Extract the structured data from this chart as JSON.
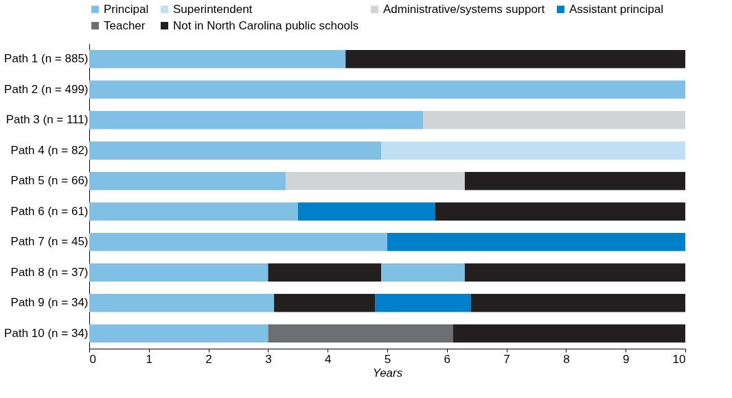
{
  "chart_data": {
    "type": "bar",
    "orientation": "horizontal",
    "stacked": true,
    "xlabel": "Years",
    "legend": "top right",
    "grid": false,
    "xlim": [
      0,
      10
    ],
    "xticks": [
      0,
      1,
      2,
      3,
      4,
      5,
      6,
      7,
      8,
      9,
      10
    ],
    "categories": [
      "Path 1 (n = 885)",
      "Path 2 (n = 499)",
      "Path 3 (n = 111)",
      "Path 4 (n = 82)",
      "Path 5 (n = 66)",
      "Path 6 (n = 61)",
      "Path 7 (n = 45)",
      "Path 8 (n = 37)",
      "Path 9 (n = 34)",
      "Path 10 (n = 34)"
    ],
    "series": [
      {
        "name": "Principal",
        "color": "#80c0e4",
        "values": [
          4.3,
          10,
          5.6,
          4.9,
          3.3,
          3.5,
          5.0,
          3.0,
          3.1,
          3.0
        ]
      },
      {
        "color": "#231f20",
        "values": [
          null,
          null,
          null,
          null,
          null,
          null,
          null,
          1.9,
          1.7,
          null
        ]
      },
      {
        "color": "#80c0e4",
        "values": [
          null,
          null,
          null,
          null,
          null,
          null,
          null,
          1.4,
          null,
          null
        ]
      },
      {
        "name": "Superintendent",
        "color": "#bfe0f2",
        "values": [
          null,
          null,
          null,
          5.1,
          null,
          null,
          null,
          null,
          null,
          null
        ]
      },
      {
        "name": "Administrative/systems support",
        "color": "#d1d3d4",
        "values": [
          null,
          null,
          4.4,
          null,
          3.0,
          null,
          null,
          null,
          null,
          null
        ]
      },
      {
        "name": "Assistant principal",
        "color": "#0080c8",
        "values": [
          null,
          null,
          null,
          null,
          null,
          2.3,
          5.0,
          null,
          1.6,
          null
        ]
      },
      {
        "name": "Teacher",
        "color": "#6d6e71",
        "values": [
          null,
          null,
          null,
          null,
          null,
          null,
          null,
          null,
          null,
          3.1
        ]
      },
      {
        "name": "Not in North Carolina public schools",
        "color": "#231f20",
        "values": [
          5.7,
          null,
          null,
          null,
          3.7,
          4.2,
          null,
          3.7,
          3.6,
          3.9
        ]
      }
    ]
  }
}
